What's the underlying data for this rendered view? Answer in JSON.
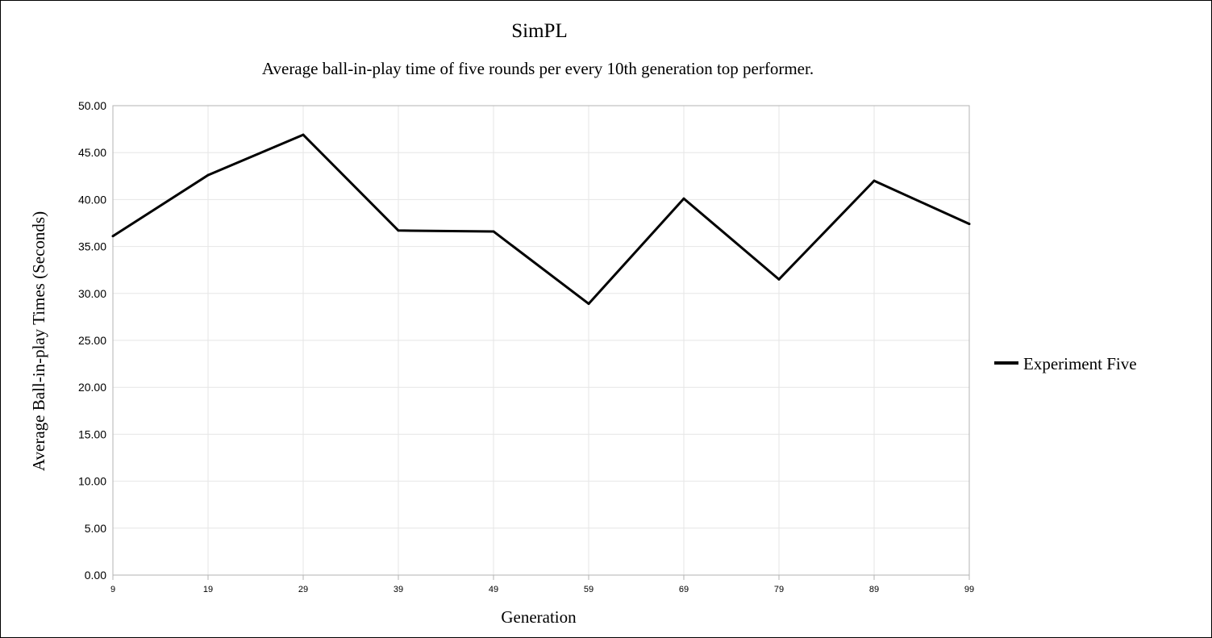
{
  "chart_data": {
    "type": "line",
    "title": "SimPL",
    "subtitle": "Average ball-in-play time of five rounds per every 10th generation top performer.",
    "xlabel": "Generation",
    "ylabel": "Average Ball-in-play Times (Seconds)",
    "categories": [
      "9",
      "19",
      "29",
      "39",
      "49",
      "59",
      "69",
      "79",
      "89",
      "99"
    ],
    "ylim": [
      0,
      50
    ],
    "yticks": [
      "0.00",
      "5.00",
      "10.00",
      "15.00",
      "20.00",
      "25.00",
      "30.00",
      "35.00",
      "40.00",
      "45.00",
      "50.00"
    ],
    "grid": true,
    "legend_position": "right",
    "series": [
      {
        "name": "Experiment Five",
        "color": "#000000",
        "values": [
          36.1,
          42.6,
          46.9,
          36.7,
          36.6,
          28.9,
          40.1,
          31.5,
          42.0,
          37.4
        ]
      }
    ]
  }
}
